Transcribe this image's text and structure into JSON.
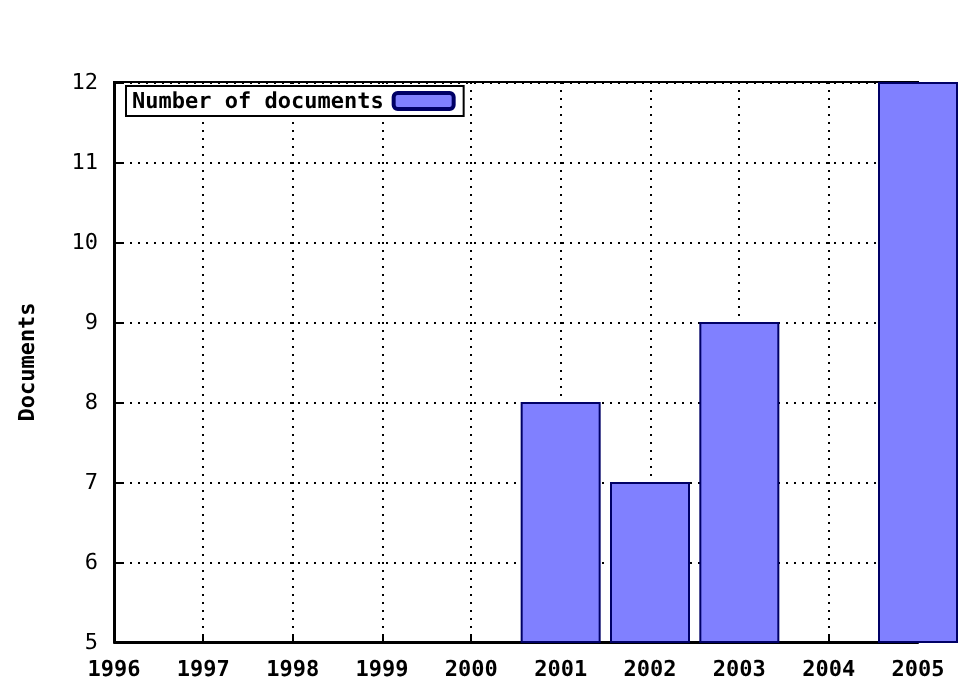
{
  "chart_data": {
    "type": "bar",
    "ylabel": "Documents",
    "x": [
      2001,
      2002,
      2003,
      2005
    ],
    "series": [
      {
        "name": "Number of documents",
        "color": "#8080ff",
        "values": [
          8,
          7,
          9,
          12
        ]
      }
    ],
    "xlim": [
      1996,
      2005
    ],
    "xticks": [
      1996,
      1997,
      1998,
      1999,
      2000,
      2001,
      2002,
      2003,
      2004,
      2005
    ],
    "ylim": [
      5,
      12
    ],
    "yticks": [
      5,
      6,
      7,
      8,
      9,
      10,
      11,
      12
    ],
    "grid": true,
    "legend": "top left"
  }
}
